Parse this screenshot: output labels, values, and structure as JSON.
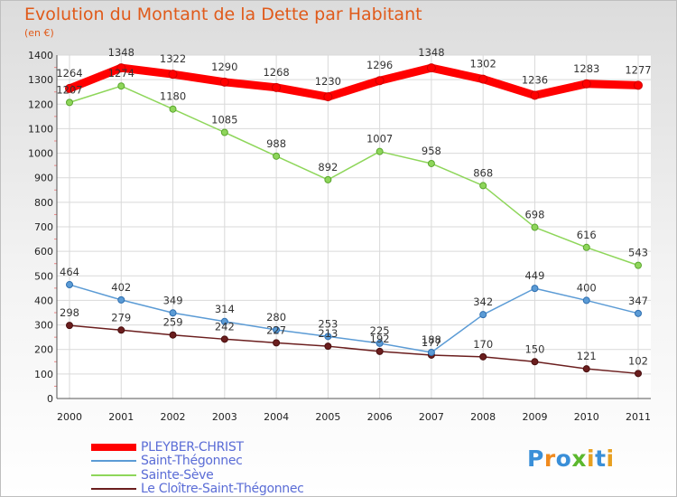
{
  "title": "Evolution du Montant de la Dette par Habitant",
  "subtitle": "(en €)",
  "logo": {
    "text": "Proxiti",
    "letter_colors": [
      "#3a8fd8",
      "#f08a1e",
      "#3a8fd8",
      "#5cb82e",
      "#e8a020",
      "#3a8fd8",
      "#e8a020"
    ]
  },
  "chart_data": {
    "type": "line",
    "title": "Evolution du Montant de la Dette par Habitant",
    "ylabel": "(en €)",
    "xlabel": "",
    "x": [
      "2000",
      "2001",
      "2002",
      "2003",
      "2004",
      "2005",
      "2006",
      "2007",
      "2008",
      "2009",
      "2010",
      "2011"
    ],
    "ylim": [
      0,
      1400
    ],
    "yticks": [
      "0",
      "100",
      "200",
      "300",
      "400",
      "500",
      "600",
      "700",
      "800",
      "900",
      "1000",
      "1100",
      "1200",
      "1300",
      "1400"
    ],
    "grid": true,
    "legend_position": "bottom-left",
    "series": [
      {
        "name": "PLEYBER-CHRIST",
        "color": "#ff0000",
        "values": [
          1264,
          1348,
          1322,
          1290,
          1268,
          1230,
          1296,
          1348,
          1302,
          1236,
          1283,
          1277
        ]
      },
      {
        "name": "Saint-Thégonnec",
        "color": "#5b9bd5",
        "values": [
          464,
          402,
          349,
          314,
          280,
          253,
          225,
          188,
          342,
          449,
          400,
          347
        ]
      },
      {
        "name": "Sainte-Sève",
        "color": "#8ed65a",
        "values": [
          1207,
          1274,
          1180,
          1085,
          988,
          892,
          1007,
          958,
          868,
          698,
          616,
          543
        ]
      },
      {
        "name": "Le Cloître-Saint-Thégonnec",
        "color": "#6b1e1e",
        "values": [
          298,
          279,
          259,
          242,
          227,
          213,
          192,
          177,
          170,
          150,
          121,
          102
        ]
      }
    ]
  }
}
